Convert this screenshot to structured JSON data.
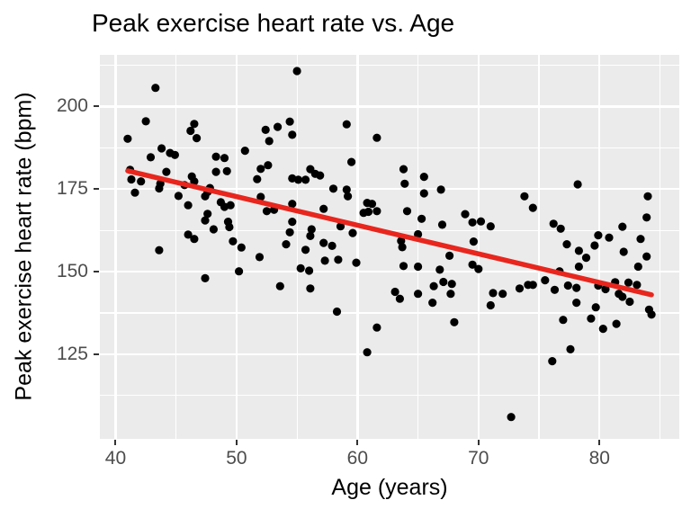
{
  "title": "Peak exercise heart rate vs. Age",
  "chart_data": {
    "type": "scatter",
    "title": "Peak exercise heart rate vs. Age",
    "xlabel": "Age (years)",
    "ylabel": "Peak exercise heart rate (bpm)",
    "x_domain": [
      38.7,
      86.6
    ],
    "y_domain": [
      99.4,
      215.6
    ],
    "x_ticks": [
      40,
      50,
      60,
      70,
      80
    ],
    "y_ticks": [
      125,
      150,
      175,
      200
    ],
    "x_minor_ticks": [
      45,
      55,
      65,
      75,
      85
    ],
    "y_minor_ticks": [
      112.5,
      137.5,
      162.5,
      187.5,
      212.5
    ],
    "grid": true,
    "legend_position": "none",
    "panel_bg": "#EBEBEB",
    "grid_color": "#FFFFFF",
    "point_color": "#000000",
    "tick_label_color": "#4D4D4D",
    "trend_color": "#E8261D",
    "trend_line": {
      "x1": 41.0,
      "y1": 180.5,
      "x2": 84.3,
      "y2": 143.0
    },
    "points": [
      [
        41,
        190.2
      ],
      [
        41.2,
        180.8
      ],
      [
        41.3,
        177.9
      ],
      [
        41.6,
        173.9
      ],
      [
        42.1,
        177.3
      ],
      [
        42.5,
        195.5
      ],
      [
        42.9,
        184.6
      ],
      [
        43.3,
        205.6
      ],
      [
        43.6,
        175.2
      ],
      [
        43.6,
        156.5
      ],
      [
        43.7,
        176.6
      ],
      [
        43.8,
        187.3
      ],
      [
        44.2,
        180.2
      ],
      [
        44.5,
        185.9
      ],
      [
        44.9,
        185.3
      ],
      [
        45.2,
        172.9
      ],
      [
        45.7,
        176.2
      ],
      [
        46,
        170.1
      ],
      [
        46,
        161.2
      ],
      [
        46.2,
        192.6
      ],
      [
        46.3,
        178.8
      ],
      [
        46.5,
        194.7
      ],
      [
        46.5,
        177.3
      ],
      [
        46.5,
        159.9
      ],
      [
        46.7,
        190.4
      ],
      [
        47.4,
        172.8
      ],
      [
        47.4,
        165.5
      ],
      [
        47.4,
        148
      ],
      [
        47.6,
        174.1
      ],
      [
        47.6,
        167.5
      ],
      [
        47.8,
        175.3
      ],
      [
        48.1,
        162.8
      ],
      [
        48.3,
        184.8
      ],
      [
        48.3,
        180.2
      ],
      [
        48.7,
        171
      ],
      [
        49,
        184.4
      ],
      [
        49,
        169.6
      ],
      [
        49.2,
        180.4
      ],
      [
        49.3,
        165.1
      ],
      [
        49.4,
        163.5
      ],
      [
        49.5,
        170.1
      ],
      [
        49.7,
        159.2
      ],
      [
        50.2,
        150.1
      ],
      [
        50.4,
        157.3
      ],
      [
        50.7,
        186.6
      ],
      [
        51.7,
        178
      ],
      [
        51.9,
        154.4
      ],
      [
        52,
        181.1
      ],
      [
        52,
        172.6
      ],
      [
        52.4,
        192.9
      ],
      [
        52.5,
        168.3
      ],
      [
        52.6,
        182.2
      ],
      [
        52.7,
        189.5
      ],
      [
        53.1,
        168.7
      ],
      [
        53.4,
        193.8
      ],
      [
        53.6,
        145.6
      ],
      [
        54.1,
        158.3
      ],
      [
        54.4,
        195.4
      ],
      [
        54.4,
        161.9
      ],
      [
        54.6,
        191.4
      ],
      [
        54.6,
        178.2
      ],
      [
        54.6,
        170.5
      ],
      [
        54.6,
        165.1
      ],
      [
        55,
        210.7
      ],
      [
        55.1,
        177.8
      ],
      [
        55.3,
        151
      ],
      [
        55.7,
        177.8
      ],
      [
        55.7,
        156.6
      ],
      [
        56,
        150.3
      ],
      [
        56.1,
        181
      ],
      [
        56.1,
        160.8
      ],
      [
        56.1,
        144.9
      ],
      [
        56.2,
        162.8
      ],
      [
        56.5,
        179.6
      ],
      [
        56.9,
        179.1
      ],
      [
        57.2,
        169
      ],
      [
        57.2,
        158.7
      ],
      [
        57.3,
        153.3
      ],
      [
        57.9,
        157.8
      ],
      [
        58,
        175.1
      ],
      [
        58.3,
        137.9
      ],
      [
        58.4,
        153.6
      ],
      [
        58.6,
        163.7
      ],
      [
        59.1,
        194.6
      ],
      [
        59.1,
        174.8
      ],
      [
        59.2,
        172.8
      ],
      [
        59.5,
        183.2
      ],
      [
        59.6,
        161.7
      ],
      [
        59.9,
        152.7
      ],
      [
        60.5,
        167.8
      ],
      [
        60.8,
        170.8
      ],
      [
        60.8,
        125.6
      ],
      [
        60.9,
        168.1
      ],
      [
        61.2,
        170.5
      ],
      [
        61.6,
        190.5
      ],
      [
        61.6,
        168.3
      ],
      [
        61.6,
        133.1
      ],
      [
        63.1,
        143.9
      ],
      [
        63.5,
        141.8
      ],
      [
        63.6,
        159.3
      ],
      [
        63.7,
        157.4
      ],
      [
        63.8,
        181
      ],
      [
        63.8,
        151.7
      ],
      [
        63.9,
        176.6
      ],
      [
        64.1,
        168.3
      ],
      [
        65,
        161.3
      ],
      [
        65,
        151.5
      ],
      [
        65,
        143.3
      ],
      [
        65.3,
        166
      ],
      [
        65.5,
        178.7
      ],
      [
        65.5,
        173.7
      ],
      [
        66.2,
        140.6
      ],
      [
        66.3,
        145.6
      ],
      [
        66.8,
        150.6
      ],
      [
        66.9,
        174.8
      ],
      [
        67,
        164.2
      ],
      [
        67.1,
        146.9
      ],
      [
        67.6,
        154.8
      ],
      [
        67.7,
        143.3
      ],
      [
        67.8,
        146.3
      ],
      [
        68,
        134.7
      ],
      [
        68.9,
        167.4
      ],
      [
        69.5,
        164.9
      ],
      [
        69.5,
        152.1
      ],
      [
        69.6,
        159.1
      ],
      [
        70,
        150.8
      ],
      [
        70.2,
        165.2
      ],
      [
        71,
        163.7
      ],
      [
        71,
        139.8
      ],
      [
        71.2,
        143.5
      ],
      [
        72,
        143.3
      ],
      [
        72.7,
        106
      ],
      [
        73.4,
        144.9
      ],
      [
        73.8,
        172.8
      ],
      [
        74.1,
        146
      ],
      [
        74.5,
        169.3
      ],
      [
        74.5,
        146
      ],
      [
        75.5,
        147.4
      ],
      [
        76.1,
        122.9
      ],
      [
        76.2,
        164.5
      ],
      [
        76.3,
        144.5
      ],
      [
        76.7,
        150.1
      ],
      [
        76.8,
        163
      ],
      [
        77,
        135.4
      ],
      [
        77.3,
        158.3
      ],
      [
        77.4,
        145.8
      ],
      [
        77.6,
        126.5
      ],
      [
        78.1,
        145.1
      ],
      [
        78.1,
        140.6
      ],
      [
        78.2,
        176.4
      ],
      [
        78.3,
        156.3
      ],
      [
        78.3,
        151.5
      ],
      [
        78.9,
        154.2
      ],
      [
        79.3,
        135.8
      ],
      [
        79.6,
        157.9
      ],
      [
        79.7,
        139.2
      ],
      [
        79.9,
        161
      ],
      [
        79.9,
        145.8
      ],
      [
        80.3,
        132.7
      ],
      [
        80.5,
        144.7
      ],
      [
        80.8,
        160.3
      ],
      [
        81.3,
        146.8
      ],
      [
        81.4,
        134.2
      ],
      [
        81.6,
        143.3
      ],
      [
        81.9,
        163.6
      ],
      [
        81.9,
        142.4
      ],
      [
        82,
        156
      ],
      [
        82.4,
        146.7
      ],
      [
        82.5,
        140.9
      ],
      [
        83.1,
        146
      ],
      [
        83.2,
        151.5
      ],
      [
        83.4,
        159.9
      ],
      [
        83.9,
        166.4
      ],
      [
        83.9,
        154.6
      ],
      [
        84,
        172.8
      ],
      [
        84.1,
        138.5
      ],
      [
        84.3,
        137
      ]
    ]
  }
}
